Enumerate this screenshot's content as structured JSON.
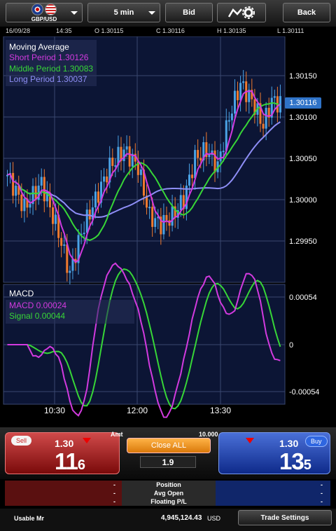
{
  "toolbar": {
    "pair": "GBP/USD",
    "timeframe": "5 min",
    "price_type": "Bid",
    "back": "Back"
  },
  "ohlc": {
    "date": "16/09/28",
    "time": "14:35",
    "open": "O 1.30115",
    "close": "C 1.30116",
    "high": "H 1.30135",
    "low": "L 1.30111"
  },
  "main_panel": {
    "title": "Moving Average",
    "short_label": "Short Period 1.30126",
    "middle_label": "Middle Period 1.30083",
    "long_label": "Long Period 1.30037",
    "current_price": "1.30116",
    "y_ticks": [
      "1.30150",
      "1.30100",
      "1.30050",
      "1.30000",
      "1.29950"
    ]
  },
  "macd_panel": {
    "title": "MACD",
    "macd_label": "MACD 0.00024",
    "signal_label": "Signal 0.00044",
    "y_ticks": [
      "0.00054",
      "0",
      "-0.00054"
    ]
  },
  "x_ticks": [
    "10:30",
    "12:00",
    "13:30"
  ],
  "colors": {
    "short": "#d23adf",
    "middle": "#37d637",
    "long": "#8e8ef6",
    "macd": "#d23adf",
    "signal": "#37d637",
    "up_candle": "#4aa3e6",
    "down_candle": "#f07a2e",
    "chart_bg": "#0c1535",
    "grid": "#3a4870"
  },
  "trade": {
    "sell_pill": "Sell",
    "sell_small": "1.30",
    "sell_big": "11",
    "sell_sub": "6",
    "buy_pill": "Buy",
    "buy_small": "1.30",
    "buy_big": "13",
    "buy_sub": "5",
    "amt_label": "Amt",
    "amt_number": "10.000",
    "close_all": "Close ALL",
    "spread": "1.9"
  },
  "positions": [
    {
      "label": "Position",
      "left": "-",
      "right": "-"
    },
    {
      "label": "Avg Open",
      "left": "-",
      "right": "-"
    },
    {
      "label": "Floating P/L",
      "left": "-",
      "right": "-"
    }
  ],
  "footer": {
    "usable_label": "Usable Mr",
    "usable_value": "4,945,124.43",
    "currency": "USD",
    "trade_settings": "Trade Settings"
  }
}
